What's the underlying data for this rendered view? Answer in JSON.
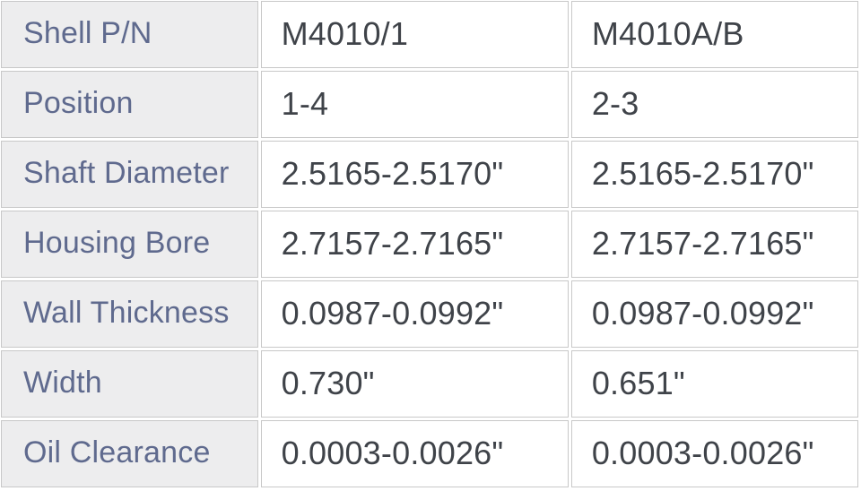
{
  "table": {
    "description": "Bearing shell specification table",
    "colors": {
      "label_background": "#ededee",
      "label_text": "#5f6a8e",
      "value_text": "#3f4349",
      "border": "#c8c8c8",
      "gap_background": "#ffffff"
    },
    "rows": [
      {
        "label": "Shell P/N",
        "values": [
          "M4010/1",
          "M4010A/B"
        ]
      },
      {
        "label": "Position",
        "values": [
          "1-4",
          "2-3"
        ]
      },
      {
        "label": "Shaft Diameter",
        "values": [
          "2.5165-2.5170\"",
          "2.5165-2.5170\""
        ]
      },
      {
        "label": "Housing Bore",
        "values": [
          "2.7157-2.7165\"",
          "2.7157-2.7165\""
        ]
      },
      {
        "label": "Wall Thickness",
        "values": [
          "0.0987-0.0992\"",
          "0.0987-0.0992\""
        ]
      },
      {
        "label": "Width",
        "values": [
          "0.730\"",
          "0.651\""
        ]
      },
      {
        "label": "Oil Clearance",
        "values": [
          "0.0003-0.0026\"",
          "0.0003-0.0026\""
        ]
      }
    ]
  }
}
